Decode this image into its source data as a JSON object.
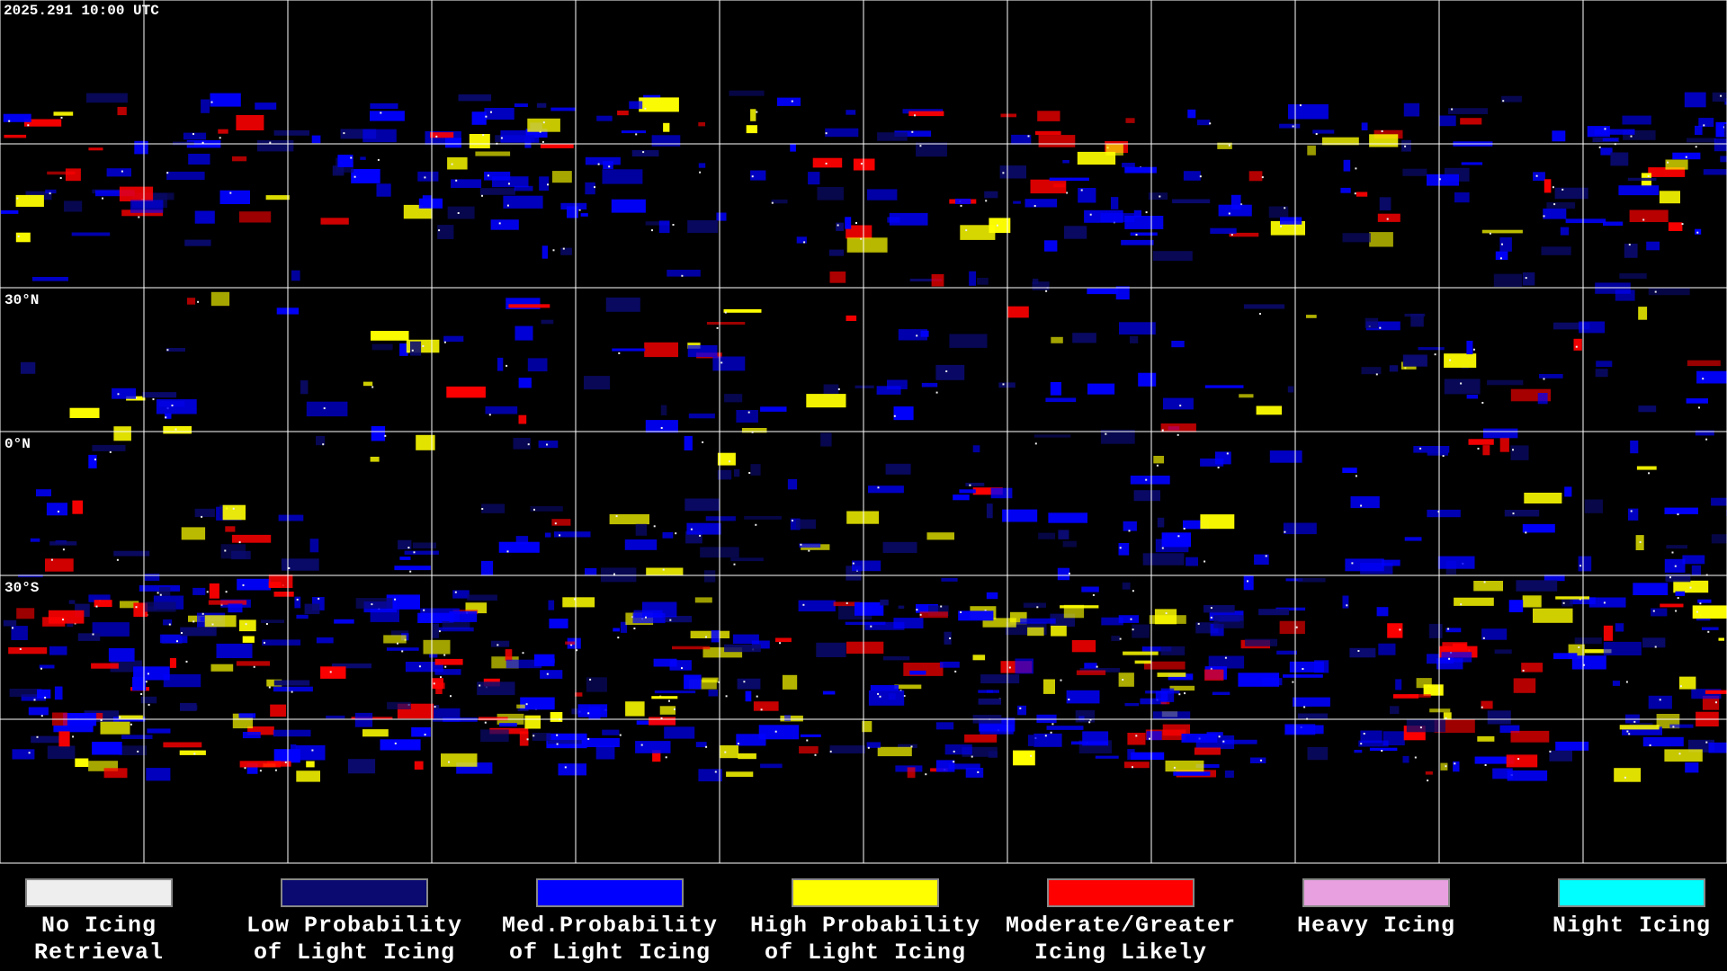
{
  "header": {
    "timestamp": "2025.291 10:00 UTC"
  },
  "map": {
    "latitude_labels": [
      "30°N",
      "0°N",
      "30°S"
    ]
  },
  "legend": {
    "items": [
      {
        "label_lines": [
          "No Icing",
          "Retrieval"
        ],
        "color": "#eeeeee"
      },
      {
        "label_lines": [
          "Low Probability",
          "of Light Icing"
        ],
        "color": "#0a0a70"
      },
      {
        "label_lines": [
          "Med.Probability",
          "of Light Icing"
        ],
        "color": "#0000ff"
      },
      {
        "label_lines": [
          "High Probability",
          "of Light Icing"
        ],
        "color": "#ffff00"
      },
      {
        "label_lines": [
          "Moderate/Greater",
          "Icing Likely"
        ],
        "color": "#ff0000"
      },
      {
        "label_lines": [
          "Heavy Icing"
        ],
        "color": "#e8a0e0"
      },
      {
        "label_lines": [
          "Night Icing"
        ],
        "color": "#00ffff"
      }
    ]
  }
}
